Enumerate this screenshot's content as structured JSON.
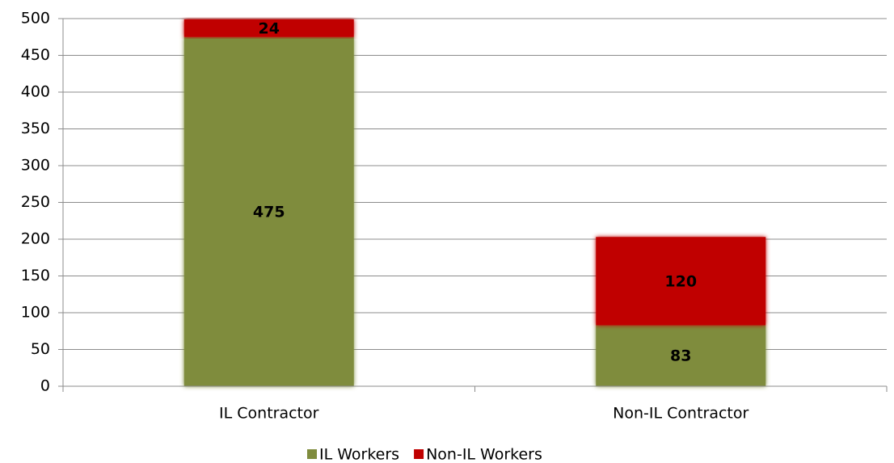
{
  "chart_data": {
    "type": "stacked_bar",
    "categories": [
      "IL Contractor",
      "Non-IL Contractor"
    ],
    "series": [
      {
        "name": "IL Workers",
        "color": "#7f8c3d",
        "values": [
          475,
          83
        ]
      },
      {
        "name": "Non-IL Workers",
        "color": "#c00000",
        "values": [
          24,
          120
        ]
      }
    ],
    "ylim": [
      0,
      500
    ],
    "yticks": [
      0,
      50,
      100,
      150,
      200,
      250,
      300,
      350,
      400,
      450,
      500
    ],
    "grid": true,
    "legend": "bottom"
  }
}
